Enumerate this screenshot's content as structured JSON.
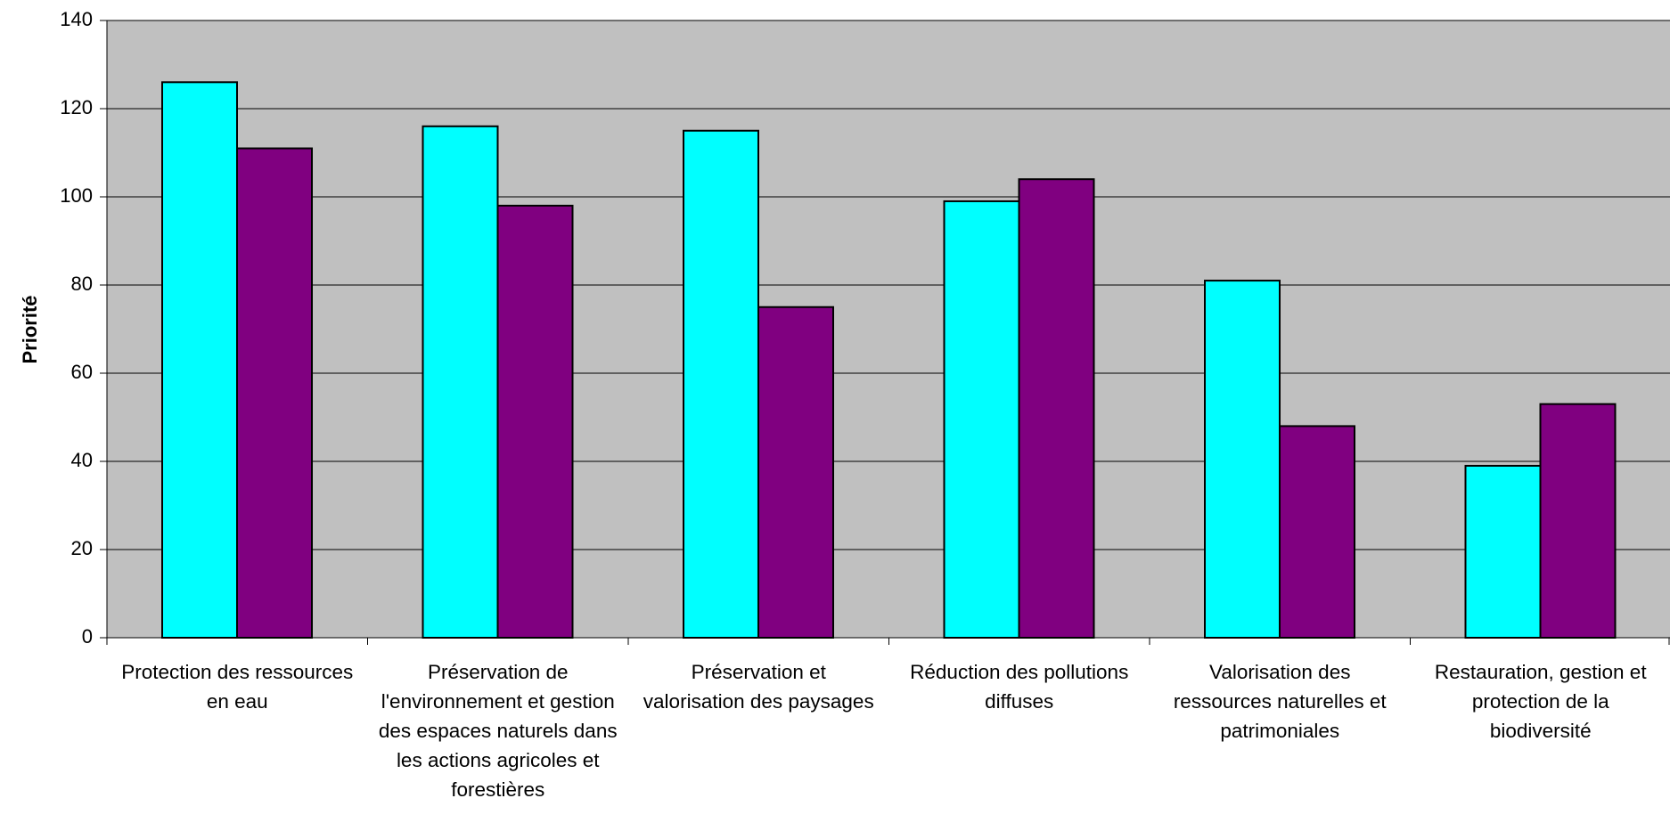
{
  "chart_data": {
    "type": "bar",
    "ylabel": "Priorité",
    "xlabel": "",
    "ylim": [
      0,
      140
    ],
    "yticks": [
      0,
      20,
      40,
      60,
      80,
      100,
      120,
      140
    ],
    "grid": true,
    "legend": "none",
    "plot_background": "#C0C0C0",
    "categories": [
      "Protection des ressources en eau",
      "Préservation de l'environnement et gestion des espaces naturels dans les actions agricoles et forestières",
      "Préservation et valorisation des paysages",
      "Réduction des pollutions diffuses",
      "Valorisation des ressources naturelles et patrimoniales",
      "Restauration, gestion et protection de la biodiversité"
    ],
    "series": [
      {
        "color": "#00FFFF",
        "values": [
          126,
          116,
          115,
          99,
          81,
          39
        ]
      },
      {
        "color": "#800080",
        "values": [
          111,
          98,
          75,
          104,
          48,
          53
        ]
      }
    ]
  }
}
